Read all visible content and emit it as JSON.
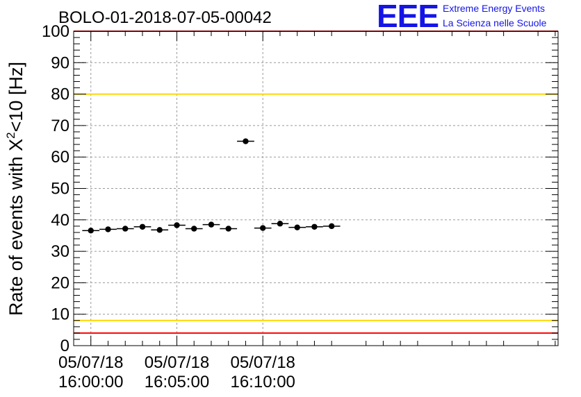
{
  "header": {
    "title": "BOLO-01-2018-07-05-00042",
    "logo_mark": "EEE",
    "logo_line1": "Extreme Energy Events",
    "logo_line2": "La Scienza nelle Scuole"
  },
  "colors": {
    "data": "#000000",
    "grid": "#999999",
    "yellow_line": "#ffd700",
    "red_line": "#ff0000",
    "logo": "#1414e6"
  },
  "chart_data": {
    "type": "scatter",
    "title": "BOLO-01-2018-07-05-00042",
    "xlabel": "",
    "ylabel": "Rate of events with X²<10 [Hz]",
    "ylabel_parts": {
      "pre": "Rate of events with X",
      "sup": "2",
      "post": "<10 [Hz]"
    },
    "xlim_seconds": [
      -60,
      1630
    ],
    "ylim": [
      0,
      100
    ],
    "x_ticks": [
      {
        "t": 0,
        "date": "05/07/18",
        "time": "16:00:00"
      },
      {
        "t": 300,
        "date": "05/07/18",
        "time": "16:05:00"
      },
      {
        "t": 600,
        "date": "05/07/18",
        "time": "16:10:00"
      }
    ],
    "y_ticks": [
      0,
      10,
      20,
      30,
      40,
      50,
      60,
      70,
      80,
      90,
      100
    ],
    "grid": true,
    "bin_width_seconds": 60,
    "series": [
      {
        "x": [
          0,
          60,
          120,
          180,
          240,
          300,
          360,
          420,
          480,
          540,
          600,
          660,
          720,
          780,
          840
        ],
        "y": [
          36.6,
          37.0,
          37.2,
          37.8,
          36.8,
          38.3,
          37.2,
          38.5,
          37.2,
          65.0,
          37.4,
          38.8,
          37.6,
          37.8,
          38.0
        ]
      }
    ],
    "reference_lines": [
      {
        "y": 80,
        "color": "#ffd700"
      },
      {
        "y": 8,
        "color": "#ffd700"
      },
      {
        "y": 100,
        "color": "#ff0000"
      },
      {
        "y": 4,
        "color": "#ff0000"
      }
    ]
  }
}
